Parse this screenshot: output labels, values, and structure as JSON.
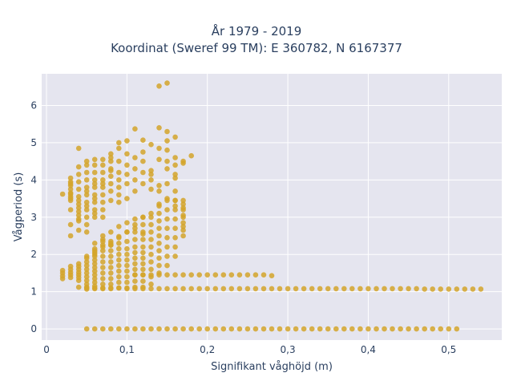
{
  "chart_data": {
    "type": "scatter",
    "title_line1": "År 1979 - 2019",
    "title_line2": "Koordinat (Sweref 99 TM): E 360782, N 6167377",
    "xlabel": "Signifikant våghöjd (m)",
    "ylabel": "Vågperiod (s)",
    "xlim": [
      -0.006,
      0.566
    ],
    "ylim": [
      -0.3,
      6.85
    ],
    "xticks": [
      0,
      0.1,
      0.2,
      0.3,
      0.4,
      0.5
    ],
    "xtick_labels": [
      "0",
      "0,1",
      "0,2",
      "0,3",
      "0,4",
      "0,5"
    ],
    "yticks": [
      0,
      1,
      2,
      3,
      4,
      5,
      6
    ],
    "ytick_labels": [
      "0",
      "1",
      "2",
      "3",
      "4",
      "5",
      "6"
    ],
    "grid": true,
    "marker_color": "#d4a42a",
    "plot_bg": "#e5e5ef",
    "series": [
      {
        "x": [
          0.02,
          0.02,
          0.02,
          0.02,
          0.02,
          0.03,
          0.03,
          0.03,
          0.03,
          0.03,
          0.03,
          0.03,
          0.03,
          0.03,
          0.03,
          0.03,
          0.03,
          0.03,
          0.03,
          0.03,
          0.03,
          0.03,
          0.03,
          0.04,
          0.04,
          0.04,
          0.04,
          0.04,
          0.04,
          0.04,
          0.04,
          0.04,
          0.04,
          0.04,
          0.04,
          0.04,
          0.04,
          0.04,
          0.04,
          0.04,
          0.04,
          0.04,
          0.04,
          0.04,
          0.05,
          0.05,
          0.05,
          0.05,
          0.05,
          0.05,
          0.05,
          0.05,
          0.05,
          0.05,
          0.05,
          0.05,
          0.05,
          0.05,
          0.05,
          0.05,
          0.05,
          0.05,
          0.05,
          0.05,
          0.05,
          0.05,
          0.05,
          0.05,
          0.06,
          0.06,
          0.06,
          0.06,
          0.06,
          0.06,
          0.06,
          0.06,
          0.06,
          0.06,
          0.06,
          0.06,
          0.06,
          0.06,
          0.06,
          0.06,
          0.06,
          0.06,
          0.06,
          0.06,
          0.06,
          0.06,
          0.06,
          0.06,
          0.07,
          0.07,
          0.07,
          0.07,
          0.07,
          0.07,
          0.07,
          0.07,
          0.07,
          0.07,
          0.07,
          0.07,
          0.07,
          0.07,
          0.07,
          0.07,
          0.07,
          0.07,
          0.07,
          0.07,
          0.08,
          0.08,
          0.08,
          0.08,
          0.08,
          0.08,
          0.08,
          0.08,
          0.08,
          0.08,
          0.08,
          0.08,
          0.08,
          0.08,
          0.08,
          0.08,
          0.08,
          0.08,
          0.08,
          0.09,
          0.09,
          0.09,
          0.09,
          0.09,
          0.09,
          0.09,
          0.09,
          0.09,
          0.09,
          0.09,
          0.09,
          0.09,
          0.09,
          0.09,
          0.09,
          0.09,
          0.09,
          0.1,
          0.1,
          0.1,
          0.1,
          0.1,
          0.1,
          0.1,
          0.1,
          0.1,
          0.1,
          0.1,
          0.1,
          0.1,
          0.1,
          0.1,
          0.1,
          0.11,
          0.11,
          0.11,
          0.11,
          0.11,
          0.11,
          0.11,
          0.11,
          0.11,
          0.11,
          0.11,
          0.11,
          0.11,
          0.11,
          0.11,
          0.11,
          0.12,
          0.12,
          0.12,
          0.12,
          0.12,
          0.12,
          0.12,
          0.12,
          0.12,
          0.12,
          0.12,
          0.12,
          0.12,
          0.12,
          0.12,
          0.12,
          0.12,
          0.13,
          0.13,
          0.13,
          0.13,
          0.13,
          0.13,
          0.13,
          0.13,
          0.13,
          0.13,
          0.13,
          0.13,
          0.13,
          0.13,
          0.13,
          0.14,
          0.14,
          0.14,
          0.14,
          0.14,
          0.14,
          0.14,
          0.14,
          0.14,
          0.14,
          0.14,
          0.14,
          0.14,
          0.14,
          0.14,
          0.14,
          0.15,
          0.15,
          0.15,
          0.15,
          0.15,
          0.15,
          0.15,
          0.15,
          0.15,
          0.15,
          0.15,
          0.15,
          0.15,
          0.15,
          0.15,
          0.16,
          0.16,
          0.16,
          0.16,
          0.16,
          0.16,
          0.16,
          0.16,
          0.16,
          0.16,
          0.16,
          0.16,
          0.16,
          0.16,
          0.16,
          0.17,
          0.17,
          0.17,
          0.17,
          0.17,
          0.17,
          0.17,
          0.17,
          0.17,
          0.17,
          0.17,
          0.17,
          0.18,
          0.06,
          0.06,
          0.06,
          0.07,
          0.07,
          0.07,
          0.08,
          0.08,
          0.08,
          0.09,
          0.09,
          0.1,
          0.1,
          0.11,
          0.11,
          0.12,
          0.12,
          0.13,
          0.14,
          0.15
        ],
        "y": [
          1.35,
          1.42,
          1.5,
          1.57,
          3.62,
          1.38,
          1.45,
          1.52,
          1.6,
          1.68,
          2.5,
          2.8,
          3.2,
          3.45,
          3.55,
          3.65,
          3.75,
          3.85,
          3.95,
          4.05,
          3.5,
          3.62,
          3.9,
          1.3,
          1.38,
          1.45,
          1.52,
          1.6,
          1.68,
          1.75,
          2.65,
          2.9,
          3.15,
          3.35,
          3.55,
          3.75,
          3.95,
          4.15,
          4.35,
          4.85,
          2.95,
          3.05,
          3.25,
          3.45,
          1.07,
          1.12,
          1.2,
          1.3,
          1.4,
          1.5,
          1.6,
          1.7,
          1.8,
          1.9,
          1.95,
          2.6,
          2.8,
          3.0,
          3.2,
          3.4,
          3.6,
          3.8,
          4.0,
          4.2,
          4.4,
          4.5,
          3.7,
          3.3,
          1.08,
          1.15,
          1.25,
          1.35,
          1.45,
          1.55,
          1.65,
          1.75,
          1.85,
          1.95,
          2.05,
          2.15,
          3.0,
          3.2,
          3.4,
          3.6,
          3.8,
          4.0,
          4.2,
          4.4,
          4.55,
          3.1,
          3.5,
          3.9,
          1.08,
          1.2,
          1.35,
          1.5,
          1.65,
          1.8,
          1.95,
          2.1,
          2.25,
          2.35,
          3.2,
          3.4,
          3.6,
          3.8,
          4.0,
          4.2,
          4.4,
          4.55,
          3.0,
          3.9,
          1.08,
          1.2,
          1.35,
          1.5,
          1.65,
          1.8,
          1.95,
          2.1,
          2.25,
          2.35,
          3.7,
          3.9,
          4.1,
          4.3,
          4.5,
          4.7,
          3.45,
          4.25,
          4.6,
          1.1,
          1.25,
          1.4,
          1.55,
          1.7,
          1.85,
          2.0,
          2.15,
          2.3,
          2.48,
          3.4,
          3.6,
          3.8,
          4.0,
          4.2,
          4.5,
          4.85,
          5.0,
          1.1,
          1.25,
          1.4,
          1.55,
          1.7,
          1.85,
          2.0,
          2.15,
          2.35,
          2.6,
          3.5,
          3.9,
          4.15,
          4.4,
          4.7,
          5.05,
          1.12,
          1.28,
          1.45,
          1.6,
          1.75,
          1.9,
          2.05,
          2.2,
          2.4,
          2.6,
          2.8,
          3.7,
          4.0,
          4.3,
          4.6,
          5.37,
          1.12,
          1.28,
          1.45,
          1.6,
          1.75,
          1.9,
          2.05,
          2.2,
          2.4,
          2.6,
          2.8,
          3.0,
          3.9,
          4.2,
          4.5,
          4.75,
          5.07,
          1.2,
          1.4,
          1.6,
          1.8,
          2.0,
          2.2,
          2.4,
          2.6,
          2.8,
          3.0,
          3.75,
          4.0,
          4.25,
          4.95,
          4.15,
          1.5,
          1.7,
          1.9,
          2.1,
          2.3,
          2.5,
          2.7,
          2.9,
          3.1,
          3.3,
          3.7,
          3.85,
          4.55,
          4.85,
          5.4,
          6.52,
          1.7,
          1.95,
          2.2,
          2.45,
          2.7,
          2.95,
          3.2,
          3.45,
          3.9,
          4.3,
          4.5,
          4.8,
          5.05,
          5.3,
          6.6,
          1.95,
          2.2,
          2.45,
          2.7,
          2.95,
          3.2,
          3.45,
          3.3,
          3.7,
          4.15,
          4.4,
          4.6,
          5.15,
          3.45,
          4.05,
          2.5,
          2.75,
          3.0,
          3.2,
          3.35,
          3.45,
          4.45,
          4.5,
          3.25,
          3.05,
          2.85,
          2.65,
          4.65,
          2.0,
          2.3,
          2.1,
          2.4,
          2.2,
          2.5,
          2.25,
          2.6,
          2.3,
          2.75,
          2.45,
          2.85,
          2.6,
          2.7,
          2.95,
          2.55,
          3.0,
          3.1,
          3.35,
          3.5
        ]
      },
      {
        "x": [
          0.04,
          0.05,
          0.06,
          0.07,
          0.08,
          0.09,
          0.1,
          0.11,
          0.12,
          0.13,
          0.14,
          0.15,
          0.16,
          0.17,
          0.18,
          0.19,
          0.2,
          0.21,
          0.22,
          0.23,
          0.24,
          0.25,
          0.26,
          0.27,
          0.28,
          0.29,
          0.3,
          0.31,
          0.32,
          0.33,
          0.34,
          0.35,
          0.36,
          0.37,
          0.38,
          0.39,
          0.4,
          0.41,
          0.42,
          0.43,
          0.44,
          0.45,
          0.46,
          0.47,
          0.48,
          0.49,
          0.5,
          0.51,
          0.52,
          0.53,
          0.54
        ],
        "y": [
          1.12,
          1.1,
          1.1,
          1.1,
          1.1,
          1.1,
          1.08,
          1.08,
          1.08,
          1.08,
          1.08,
          1.08,
          1.08,
          1.08,
          1.08,
          1.08,
          1.08,
          1.08,
          1.08,
          1.08,
          1.08,
          1.08,
          1.08,
          1.08,
          1.08,
          1.08,
          1.08,
          1.08,
          1.08,
          1.08,
          1.08,
          1.08,
          1.08,
          1.08,
          1.08,
          1.08,
          1.08,
          1.08,
          1.08,
          1.08,
          1.08,
          1.08,
          1.08,
          1.07,
          1.07,
          1.07,
          1.07,
          1.07,
          1.07,
          1.07,
          1.07
        ]
      },
      {
        "x": [
          0.11,
          0.12,
          0.13,
          0.14,
          0.15,
          0.16,
          0.17,
          0.18,
          0.19,
          0.2,
          0.21,
          0.22,
          0.23,
          0.24,
          0.25,
          0.26,
          0.27,
          0.28
        ],
        "y": [
          1.45,
          1.45,
          1.45,
          1.45,
          1.45,
          1.45,
          1.45,
          1.45,
          1.45,
          1.45,
          1.45,
          1.45,
          1.45,
          1.45,
          1.45,
          1.45,
          1.45,
          1.43
        ]
      },
      {
        "x": [
          0.05,
          0.06,
          0.07,
          0.08,
          0.09,
          0.1,
          0.11,
          0.12,
          0.13,
          0.14,
          0.15,
          0.16,
          0.17,
          0.18,
          0.19,
          0.2,
          0.21,
          0.22,
          0.23,
          0.24,
          0.25,
          0.26,
          0.27,
          0.28,
          0.29,
          0.3,
          0.31,
          0.32,
          0.33,
          0.34,
          0.35,
          0.36,
          0.37,
          0.38,
          0.39,
          0.4,
          0.41,
          0.42,
          0.43,
          0.44,
          0.45,
          0.46,
          0.47,
          0.48,
          0.49,
          0.5,
          0.51
        ],
        "y": [
          0,
          0,
          0,
          0,
          0,
          0,
          0,
          0,
          0,
          0,
          0,
          0,
          0,
          0,
          0,
          0,
          0,
          0,
          0,
          0,
          0,
          0,
          0,
          0,
          0,
          0,
          0,
          0,
          0,
          0,
          0,
          0,
          0,
          0,
          0,
          0,
          0,
          0,
          0,
          0,
          0,
          0,
          0,
          0,
          0,
          0,
          0
        ]
      }
    ]
  }
}
